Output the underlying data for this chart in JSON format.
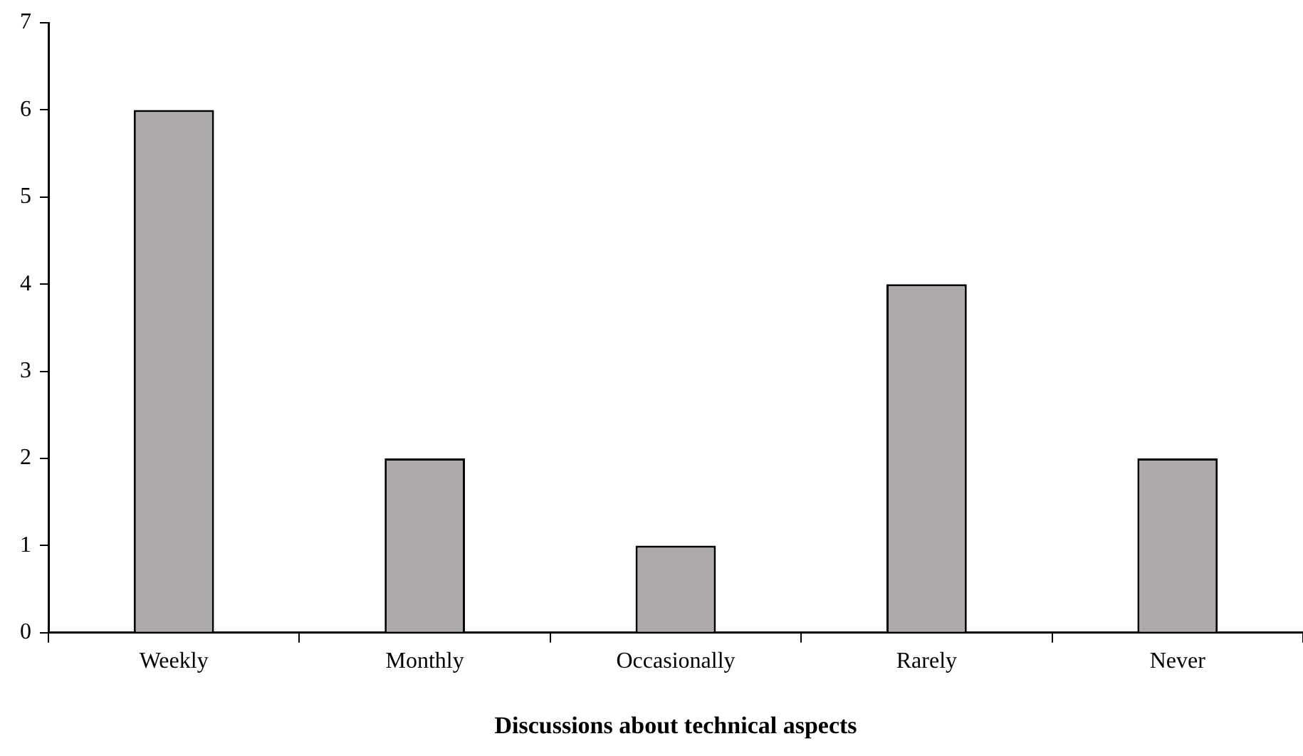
{
  "chart_data": {
    "type": "bar",
    "xlabel": "Discussions about technical aspects",
    "categories": [
      "Weekly",
      "Monthly",
      "Occasionally",
      "Rarely",
      "Never"
    ],
    "values": [
      6,
      2,
      1,
      4,
      2
    ],
    "color": "#aeaaaa",
    "ylim": [
      0,
      7
    ],
    "yticks": [
      0,
      1,
      2,
      3,
      4,
      5,
      6,
      7
    ]
  }
}
